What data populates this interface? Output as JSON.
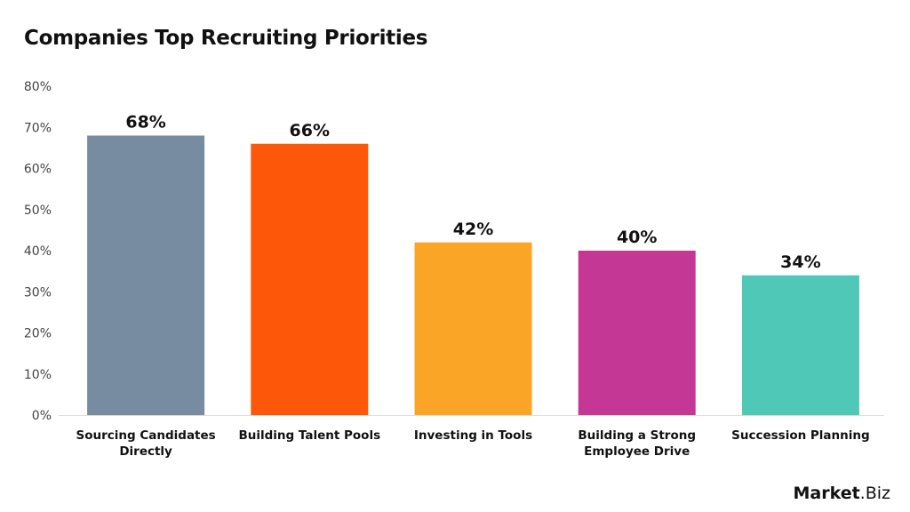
{
  "chart_data": {
    "type": "bar",
    "title": "Companies Top Recruiting Priorities",
    "categories": [
      "Sourcing Candidates Directly",
      "Building Talent Pools",
      "Investing in Tools",
      "Building a Strong Employee Drive",
      "Succession Planning"
    ],
    "category_lines": [
      [
        "Sourcing Candidates",
        "Directly"
      ],
      [
        "Building Talent Pools"
      ],
      [
        "Investing in Tools"
      ],
      [
        "Building a Strong",
        "Employee Drive"
      ],
      [
        "Succession Planning"
      ]
    ],
    "values": [
      68,
      66,
      42,
      40,
      34
    ],
    "data_labels": [
      "68%",
      "66%",
      "42%",
      "40%",
      "34%"
    ],
    "colors": [
      "#778ca0",
      "#fd5809",
      "#fba526",
      "#c43794",
      "#50c8b8"
    ],
    "ylim": [
      0,
      80
    ],
    "yticks": [
      0,
      10,
      20,
      30,
      40,
      50,
      60,
      70,
      80
    ],
    "ytick_labels": [
      "0%",
      "10%",
      "20%",
      "30%",
      "40%",
      "50%",
      "60%",
      "70%",
      "80%"
    ],
    "xlabel": "",
    "ylabel": "",
    "grid": false,
    "legend": "none"
  },
  "logo": {
    "text_bold": "Market",
    "text_light": ".Biz"
  }
}
